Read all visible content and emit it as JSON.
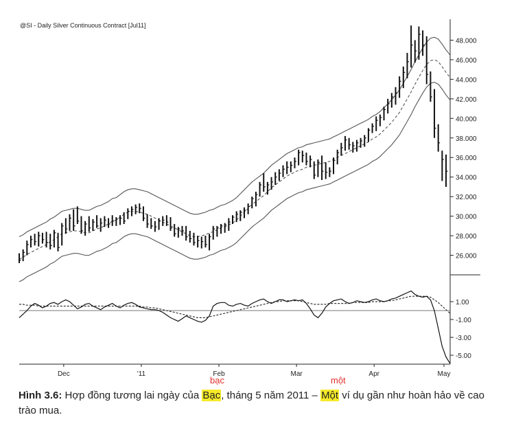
{
  "chart_data": {
    "type": "bar",
    "title": "@SI - Daily  Silver Continuous Contract [Jul11]",
    "x_labels": [
      "Dec",
      "'11",
      "Feb",
      "Mar",
      "Apr",
      "May"
    ],
    "price_panel": {
      "y_ticks": [
        "48.000",
        "46.000",
        "44.000",
        "42.000",
        "40.000",
        "38.000",
        "36.000",
        "34.000",
        "32.000",
        "30.000",
        "28.000",
        "26.000"
      ],
      "ylim": [
        24,
        50
      ],
      "bars": [
        [
          26.2,
          25.2,
          25.5
        ],
        [
          26.6,
          25.4,
          26.3
        ],
        [
          27.5,
          26.0,
          27.1
        ],
        [
          28.0,
          26.8,
          27.6
        ],
        [
          28.2,
          27.0,
          27.4
        ],
        [
          28.4,
          26.9,
          28.0
        ],
        [
          28.3,
          27.2,
          27.6
        ],
        [
          28.4,
          26.8,
          27.3
        ],
        [
          28.2,
          26.6,
          27.0
        ],
        [
          28.6,
          26.8,
          28.3
        ],
        [
          28.3,
          26.4,
          26.8
        ],
        [
          29.3,
          27.0,
          29.0
        ],
        [
          29.8,
          28.2,
          28.7
        ],
        [
          30.2,
          28.5,
          29.8
        ],
        [
          30.7,
          28.5,
          29.0
        ],
        [
          31.0,
          29.2,
          29.5
        ],
        [
          30.0,
          28.2,
          28.5
        ],
        [
          29.5,
          28.0,
          29.2
        ],
        [
          30.0,
          28.4,
          28.8
        ],
        [
          29.7,
          28.5,
          29.4
        ],
        [
          30.1,
          28.8,
          29.0
        ],
        [
          29.8,
          28.4,
          29.3
        ],
        [
          30.0,
          28.9,
          29.6
        ],
        [
          29.8,
          28.8,
          29.2
        ],
        [
          30.1,
          29.0,
          29.5
        ],
        [
          29.9,
          29.0,
          29.7
        ],
        [
          30.1,
          29.1,
          29.8
        ],
        [
          30.4,
          29.2,
          29.5
        ],
        [
          30.8,
          29.7,
          30.5
        ],
        [
          31.0,
          30.0,
          30.7
        ],
        [
          31.2,
          30.2,
          30.9
        ],
        [
          31.3,
          30.3,
          30.8
        ],
        [
          31.0,
          29.5,
          29.8
        ],
        [
          30.2,
          28.8,
          29.2
        ],
        [
          29.8,
          28.7,
          29.0
        ],
        [
          29.5,
          28.4,
          28.9
        ],
        [
          29.8,
          28.6,
          29.5
        ],
        [
          30.0,
          29.0,
          29.6
        ],
        [
          30.1,
          29.0,
          29.4
        ],
        [
          29.9,
          28.5,
          28.8
        ],
        [
          29.2,
          27.9,
          28.2
        ],
        [
          28.9,
          27.8,
          28.7
        ],
        [
          29.0,
          28.0,
          28.5
        ],
        [
          29.0,
          27.5,
          27.9
        ],
        [
          28.5,
          27.3,
          27.7
        ],
        [
          28.3,
          27.0,
          27.3
        ],
        [
          28.0,
          26.8,
          27.5
        ],
        [
          27.9,
          26.7,
          27.4
        ],
        [
          28.0,
          26.8,
          27.1
        ],
        [
          28.2,
          26.5,
          27.9
        ],
        [
          29.0,
          27.6,
          28.7
        ],
        [
          29.0,
          27.9,
          28.8
        ],
        [
          29.2,
          28.2,
          29.0
        ],
        [
          29.3,
          28.3,
          29.1
        ],
        [
          29.8,
          28.5,
          29.4
        ],
        [
          30.1,
          29.2,
          29.9
        ],
        [
          30.5,
          29.4,
          30.2
        ],
        [
          30.6,
          29.5,
          30.4
        ],
        [
          30.9,
          29.8,
          30.6
        ],
        [
          31.3,
          30.2,
          31.0
        ],
        [
          32.0,
          30.8,
          31.8
        ],
        [
          32.5,
          31.0,
          32.2
        ],
        [
          33.5,
          32.0,
          33.2
        ],
        [
          34.4,
          32.5,
          33.0
        ],
        [
          33.5,
          32.2,
          33.2
        ],
        [
          34.0,
          32.7,
          33.5
        ],
        [
          34.5,
          33.2,
          34.0
        ],
        [
          34.8,
          33.6,
          34.4
        ],
        [
          35.2,
          34.0,
          34.8
        ],
        [
          35.6,
          34.3,
          35.0
        ],
        [
          35.6,
          34.5,
          35.2
        ],
        [
          36.0,
          34.9,
          35.6
        ],
        [
          36.8,
          35.2,
          36.5
        ],
        [
          36.7,
          35.5,
          36.2
        ],
        [
          36.5,
          35.2,
          35.6
        ],
        [
          36.2,
          35.0,
          35.8
        ],
        [
          35.6,
          33.8,
          34.2
        ],
        [
          35.8,
          34.0,
          35.5
        ],
        [
          36.2,
          33.7,
          34.6
        ],
        [
          35.5,
          33.8,
          34.5
        ],
        [
          35.0,
          34.0,
          34.6
        ],
        [
          36.0,
          34.3,
          35.7
        ],
        [
          36.8,
          35.3,
          36.5
        ],
        [
          37.5,
          36.2,
          37.0
        ],
        [
          38.2,
          36.7,
          37.8
        ],
        [
          38.0,
          36.8,
          37.3
        ],
        [
          37.6,
          36.5,
          37.2
        ],
        [
          37.8,
          36.6,
          37.5
        ],
        [
          38.0,
          37.0,
          37.7
        ],
        [
          38.3,
          37.1,
          38.0
        ],
        [
          39.0,
          37.6,
          38.8
        ],
        [
          39.5,
          38.5,
          39.2
        ],
        [
          40.2,
          38.7,
          39.8
        ],
        [
          40.4,
          39.2,
          40.1
        ],
        [
          41.2,
          39.8,
          40.9
        ],
        [
          42.0,
          40.5,
          41.5
        ],
        [
          42.6,
          41.1,
          42.2
        ],
        [
          43.2,
          41.4,
          42.6
        ],
        [
          44.3,
          42.1,
          43.8
        ],
        [
          45.3,
          43.1,
          44.7
        ],
        [
          46.7,
          44.1,
          45.8
        ],
        [
          49.5,
          45.2,
          47.5
        ],
        [
          48.0,
          45.7,
          46.9
        ],
        [
          49.4,
          46.0,
          48.6
        ],
        [
          49.0,
          46.4,
          47.5
        ],
        [
          48.4,
          43.5,
          44.5
        ],
        [
          44.8,
          41.7,
          42.2
        ],
        [
          43.0,
          38.0,
          39.0
        ],
        [
          39.4,
          36.6,
          37.5
        ],
        [
          36.7,
          33.6,
          35.8
        ],
        [
          36.3,
          33.0,
          34.6
        ]
      ],
      "upper_band": [
        27.9,
        28.1,
        28.4,
        28.6,
        28.8,
        29.0,
        29.2,
        29.4,
        29.7,
        29.9,
        30.2,
        30.5,
        30.6,
        30.7,
        30.8,
        30.8,
        30.7,
        30.6,
        30.6,
        30.8,
        31.0,
        31.1,
        31.3,
        31.5,
        31.8,
        31.9,
        32.2,
        32.5,
        32.7,
        32.8,
        32.8,
        32.7,
        32.6,
        32.5,
        32.3,
        32.1,
        31.9,
        31.7,
        31.5,
        31.3,
        31.1,
        30.9,
        30.7,
        30.5,
        30.3,
        30.2,
        30.2,
        30.3,
        30.4,
        30.6,
        30.7,
        30.9,
        31.1,
        31.2,
        31.4,
        31.6,
        31.9,
        32.3,
        32.7,
        33.1,
        33.5,
        33.8,
        34.1,
        34.4,
        34.8,
        35.2,
        35.5,
        35.8,
        36.1,
        36.4,
        36.6,
        36.8,
        37.0,
        37.1,
        37.3,
        37.4,
        37.5,
        37.6,
        37.7,
        37.8,
        37.9,
        38.1,
        38.3,
        38.5,
        38.7,
        38.9,
        39.1,
        39.3,
        39.5,
        39.7,
        39.9,
        40.2,
        40.4,
        40.7,
        41.1,
        41.5,
        41.9,
        42.4,
        42.9,
        43.6,
        44.3,
        45.0,
        45.8,
        46.5,
        47.2,
        47.8,
        48.2,
        48.3,
        48.1,
        47.6,
        47.0,
        46.5
      ],
      "middle_band": [
        25.6,
        25.8,
        26.1,
        26.3,
        26.5,
        26.7,
        26.9,
        27.1,
        27.4,
        27.6,
        27.9,
        28.2,
        28.3,
        28.4,
        28.5,
        28.5,
        28.4,
        28.3,
        28.3,
        28.5,
        28.7,
        28.8,
        29.0,
        29.2,
        29.5,
        29.6,
        29.9,
        30.2,
        30.4,
        30.5,
        30.5,
        30.4,
        30.3,
        30.2,
        30.0,
        29.8,
        29.6,
        29.4,
        29.2,
        29.0,
        28.8,
        28.6,
        28.4,
        28.2,
        28.0,
        27.9,
        27.9,
        28.0,
        28.1,
        28.3,
        28.4,
        28.6,
        28.8,
        28.9,
        29.1,
        29.3,
        29.6,
        30.0,
        30.4,
        30.8,
        31.2,
        31.5,
        31.8,
        32.1,
        32.5,
        32.9,
        33.2,
        33.5,
        33.8,
        34.1,
        34.3,
        34.5,
        34.7,
        34.8,
        35.0,
        35.1,
        35.2,
        35.3,
        35.4,
        35.5,
        35.6,
        35.8,
        36.0,
        36.2,
        36.4,
        36.6,
        36.8,
        37.0,
        37.2,
        37.4,
        37.6,
        37.9,
        38.1,
        38.4,
        38.8,
        39.2,
        39.6,
        40.1,
        40.6,
        41.3,
        42.0,
        42.7,
        43.5,
        44.2,
        44.9,
        45.5,
        45.9,
        46.0,
        45.8,
        45.3,
        44.7,
        44.2
      ],
      "lower_band": [
        23.3,
        23.5,
        23.8,
        24.0,
        24.2,
        24.4,
        24.6,
        24.8,
        25.1,
        25.3,
        25.6,
        25.9,
        26.0,
        26.1,
        26.2,
        26.2,
        26.1,
        26.0,
        26.0,
        26.2,
        26.4,
        26.5,
        26.7,
        26.9,
        27.2,
        27.3,
        27.6,
        27.9,
        28.1,
        28.2,
        28.2,
        28.1,
        28.0,
        27.9,
        27.7,
        27.5,
        27.3,
        27.1,
        26.9,
        26.7,
        26.5,
        26.3,
        26.1,
        25.9,
        25.7,
        25.6,
        25.6,
        25.7,
        25.8,
        26.0,
        26.1,
        26.3,
        26.5,
        26.6,
        26.8,
        27.0,
        27.3,
        27.7,
        28.1,
        28.5,
        28.9,
        29.2,
        29.5,
        29.8,
        30.2,
        30.6,
        30.9,
        31.2,
        31.5,
        31.8,
        32.0,
        32.2,
        32.4,
        32.5,
        32.7,
        32.8,
        32.9,
        33.0,
        33.1,
        33.2,
        33.3,
        33.5,
        33.7,
        33.9,
        34.1,
        34.3,
        34.5,
        34.7,
        34.9,
        35.1,
        35.3,
        35.6,
        35.8,
        36.1,
        36.5,
        36.9,
        37.3,
        37.8,
        38.3,
        39.0,
        39.7,
        40.4,
        41.2,
        41.9,
        42.6,
        43.2,
        43.6,
        43.7,
        43.5,
        43.0,
        42.4,
        41.9
      ]
    },
    "oscillator_panel": {
      "y_ticks": [
        "1.00",
        "-1.00",
        "-3.00",
        "-5.00"
      ],
      "ylim": [
        -6,
        4
      ],
      "zero_line": 0,
      "oscillator": [
        -0.8,
        -0.4,
        0.0,
        0.5,
        0.8,
        0.6,
        0.3,
        0.5,
        0.8,
        0.9,
        0.7,
        1.0,
        1.2,
        1.0,
        0.6,
        0.2,
        0.4,
        0.7,
        0.8,
        0.5,
        0.3,
        0.1,
        0.4,
        0.6,
        0.8,
        0.5,
        0.3,
        0.6,
        0.8,
        0.9,
        0.7,
        0.4,
        0.3,
        0.2,
        0.1,
        0.1,
        0.0,
        -0.2,
        -0.5,
        -0.8,
        -1.0,
        -1.2,
        -0.9,
        -0.6,
        -0.8,
        -1.0,
        -1.2,
        -1.3,
        -1.1,
        -0.6,
        0.5,
        0.8,
        0.9,
        0.9,
        0.6,
        0.5,
        0.7,
        0.8,
        0.6,
        0.5,
        0.8,
        1.0,
        1.2,
        1.3,
        1.0,
        0.8,
        1.0,
        1.2,
        1.2,
        1.0,
        1.1,
        1.2,
        1.1,
        1.2,
        0.8,
        0.2,
        -0.5,
        -0.8,
        -0.3,
        0.4,
        0.8,
        1.1,
        1.2,
        1.3,
        1.0,
        0.8,
        0.9,
        1.1,
        1.0,
        0.9,
        1.0,
        1.2,
        1.3,
        1.1,
        1.0,
        1.1,
        1.3,
        1.4,
        1.6,
        1.8,
        2.0,
        2.2,
        1.8,
        1.6,
        1.5,
        1.6,
        1.2,
        0.0,
        -2.0,
        -4.0,
        -5.2,
        -5.9
      ],
      "signal": [
        0.7,
        0.7,
        0.6,
        0.6,
        0.6,
        0.5,
        0.5,
        0.5,
        0.5,
        0.5,
        0.5,
        0.5,
        0.5,
        0.5,
        0.5,
        0.5,
        0.5,
        0.5,
        0.5,
        0.5,
        0.5,
        0.5,
        0.5,
        0.5,
        0.5,
        0.5,
        0.5,
        0.5,
        0.5,
        0.5,
        0.5,
        0.5,
        0.4,
        0.4,
        0.3,
        0.3,
        0.2,
        0.1,
        0.0,
        -0.1,
        -0.2,
        -0.3,
        -0.4,
        -0.5,
        -0.6,
        -0.7,
        -0.8,
        -0.8,
        -0.8,
        -0.7,
        -0.6,
        -0.5,
        -0.4,
        -0.3,
        -0.2,
        -0.1,
        0.0,
        0.1,
        0.2,
        0.3,
        0.4,
        0.5,
        0.6,
        0.7,
        0.8,
        0.9,
        1.0,
        1.0,
        1.1,
        1.1,
        1.1,
        1.1,
        1.1,
        1.0,
        0.9,
        0.8,
        0.7,
        0.7,
        0.7,
        0.7,
        0.8,
        0.8,
        0.8,
        0.8,
        0.8,
        0.8,
        0.9,
        0.9,
        0.9,
        0.9,
        0.9,
        1.0,
        1.0,
        1.0,
        1.0,
        1.1,
        1.1,
        1.2,
        1.3,
        1.4,
        1.5,
        1.6,
        1.6,
        1.6,
        1.6,
        1.6,
        1.5,
        1.2,
        0.9,
        0.5,
        0.1,
        -0.3
      ]
    }
  },
  "annotations": {
    "note_left": "bạc",
    "note_right": "một"
  },
  "caption": {
    "label": "Hình 3.6:",
    "part1": " Hợp đồng tương lai ngày của ",
    "highlight1": "Bạc",
    "part2": ", tháng 5 năm 2011 – ",
    "highlight2": "Một",
    "part3": " ví dụ gần như hoàn hảo về cao trào mua."
  }
}
